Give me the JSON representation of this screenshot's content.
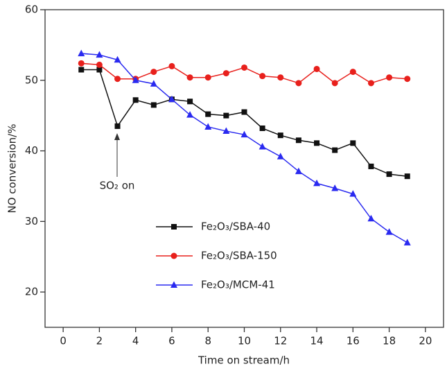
{
  "chart_data": {
    "type": "line",
    "x_label": "Time on stream/h",
    "y_label": "NO conversion/%",
    "annotation": "SO₂ on",
    "x": [
      1,
      2,
      3,
      4,
      5,
      6,
      7,
      8,
      9,
      10,
      11,
      12,
      13,
      14,
      15,
      16,
      17,
      18,
      19
    ],
    "series": [
      {
        "name": "Fe₂O₃/SBA-40",
        "color": "#111111",
        "marker": "square",
        "values": [
          51.5,
          51.5,
          43.5,
          47.2,
          46.5,
          47.3,
          47.0,
          45.2,
          45.0,
          45.5,
          43.2,
          42.2,
          41.5,
          41.1,
          40.1,
          41.1,
          37.8,
          36.7,
          36.4
        ]
      },
      {
        "name": "Fe₂O₃/SBA-150",
        "color": "#e8201c",
        "marker": "circle",
        "values": [
          52.4,
          52.2,
          50.2,
          50.2,
          51.2,
          52.0,
          50.4,
          50.4,
          51.0,
          51.8,
          50.6,
          50.4,
          49.6,
          51.6,
          49.6,
          51.2,
          49.6,
          50.4,
          50.2
        ]
      },
      {
        "name": "Fe₂O₃/MCM-41",
        "color": "#2a2af0",
        "marker": "triangle",
        "values": [
          53.8,
          53.6,
          52.9,
          50.0,
          49.5,
          47.3,
          45.1,
          43.4,
          42.8,
          42.3,
          40.6,
          39.2,
          37.1,
          35.4,
          34.7,
          33.9,
          30.4,
          28.5,
          27.0
        ]
      }
    ],
    "xlim": [
      -1,
      21
    ],
    "xticks": [
      0,
      2,
      4,
      6,
      8,
      10,
      12,
      14,
      16,
      18,
      20
    ],
    "ylim": [
      15,
      60
    ],
    "yticks": [
      20,
      30,
      40,
      50,
      60
    ],
    "legend": "lower-left",
    "grid": false
  }
}
